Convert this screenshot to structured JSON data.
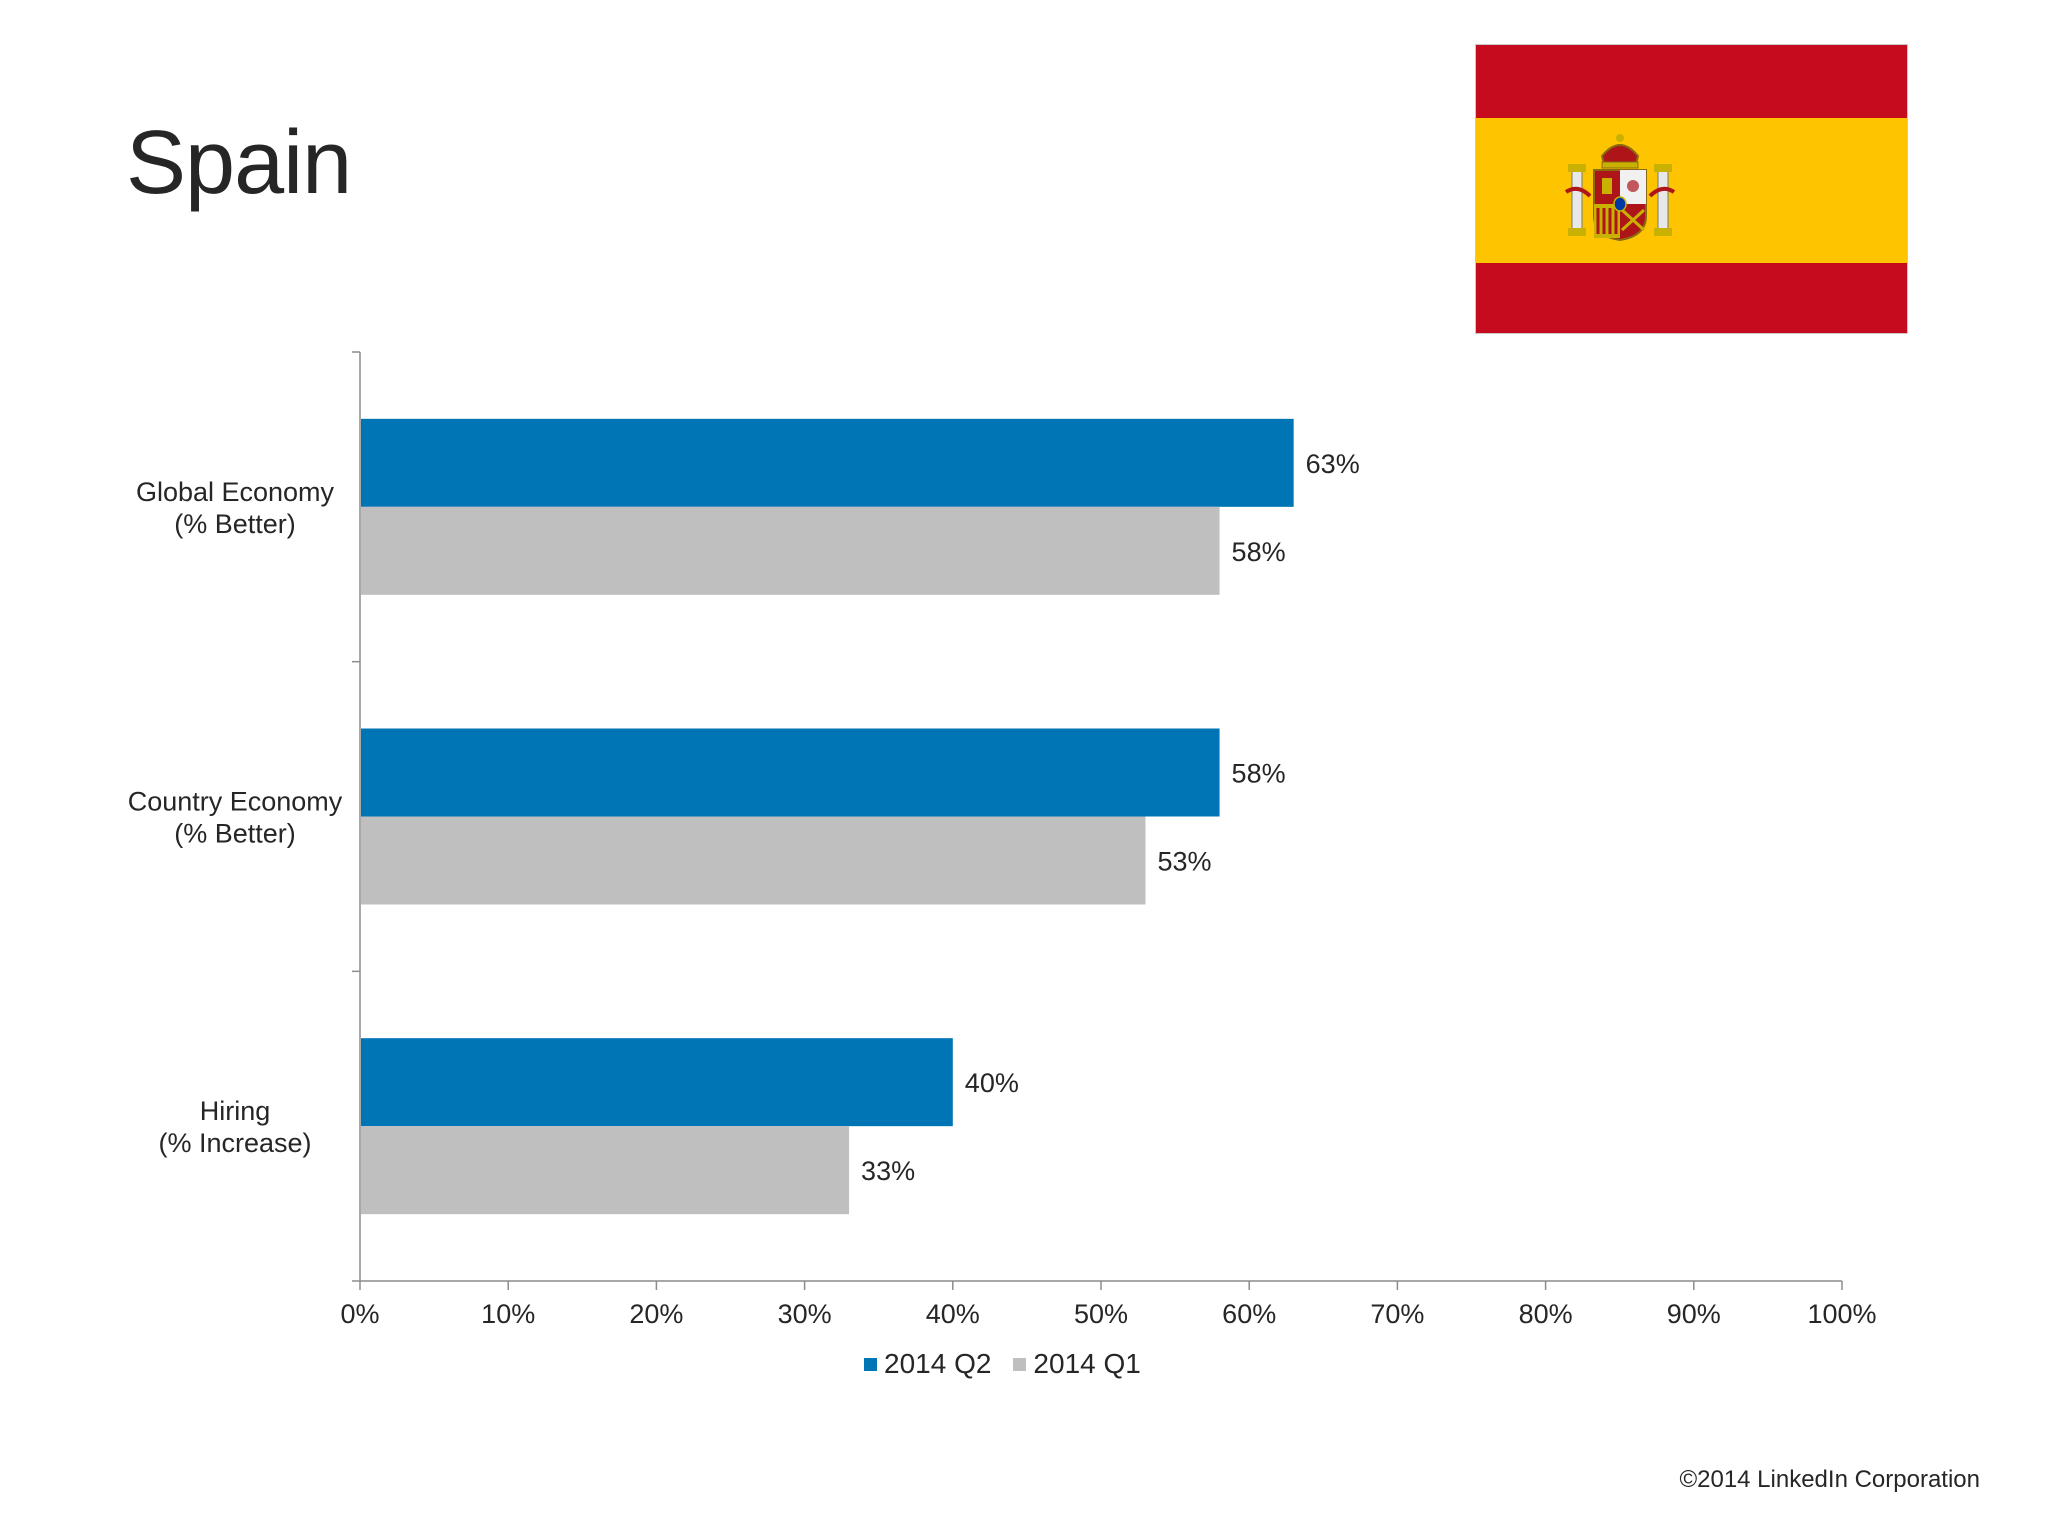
{
  "page": {
    "title": "Spain",
    "copyright": "©2014 LinkedIn Corporation"
  },
  "flag": {
    "country": "Spain",
    "colors": {
      "red": "#c60b1e",
      "yellow": "#ffc400"
    }
  },
  "chart_data": {
    "type": "bar",
    "orientation": "horizontal",
    "categories": [
      [
        "Global Economy",
        "(% Better)"
      ],
      [
        "Country Economy",
        "(% Better)"
      ],
      [
        "Hiring",
        "(% Increase)"
      ]
    ],
    "series": [
      {
        "name": "2014 Q2",
        "color": "#0075b5",
        "values": [
          63,
          58,
          40
        ],
        "labels": [
          "63%",
          "58%",
          "40%"
        ]
      },
      {
        "name": "2014 Q1",
        "color": "#bfbfbf",
        "values": [
          58,
          53,
          33
        ],
        "labels": [
          "58%",
          "53%",
          "33%"
        ]
      }
    ],
    "xlim": [
      0,
      100
    ],
    "xticks": [
      "0%",
      "10%",
      "20%",
      "30%",
      "40%",
      "50%",
      "60%",
      "70%",
      "80%",
      "90%",
      "100%"
    ],
    "grid": false,
    "legend_position": "bottom"
  }
}
